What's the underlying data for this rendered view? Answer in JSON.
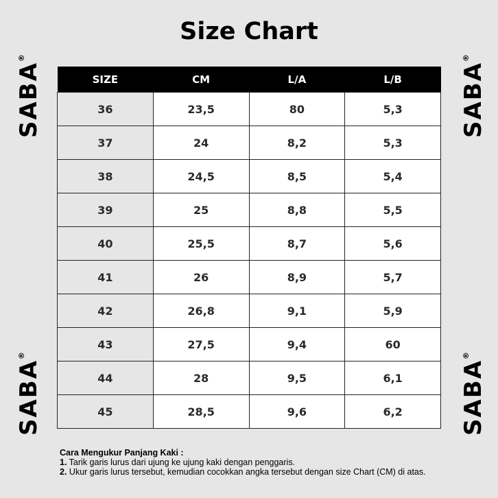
{
  "title": "Size Chart",
  "brand": "SABA",
  "registered": "®",
  "table": {
    "headers": [
      "SIZE",
      "CM",
      "L/A",
      "L/B"
    ],
    "rows": [
      [
        "36",
        "23,5",
        "80",
        "5,3"
      ],
      [
        "37",
        "24",
        "8,2",
        "5,3"
      ],
      [
        "38",
        "24,5",
        "8,5",
        "5,4"
      ],
      [
        "39",
        "25",
        "8,8",
        "5,5"
      ],
      [
        "40",
        "25,5",
        "8,7",
        "5,6"
      ],
      [
        "41",
        "26",
        "8,9",
        "5,7"
      ],
      [
        "42",
        "26,8",
        "9,1",
        "5,9"
      ],
      [
        "43",
        "27,5",
        "9,4",
        "60"
      ],
      [
        "44",
        "28",
        "9,5",
        "6,1"
      ],
      [
        "45",
        "28,5",
        "9,6",
        "6,2"
      ]
    ]
  },
  "notes": {
    "heading": "Cara Mengukur Panjang Kaki :",
    "steps": [
      {
        "num": "1.",
        "text": " Tarik garis lurus dari ujung ke ujung kaki dengan penggaris."
      },
      {
        "num": "2.",
        "text": " Ukur garis lurus tersebut, kemudian cocokkan angka tersebut dengan size Chart (CM) di atas."
      }
    ]
  }
}
